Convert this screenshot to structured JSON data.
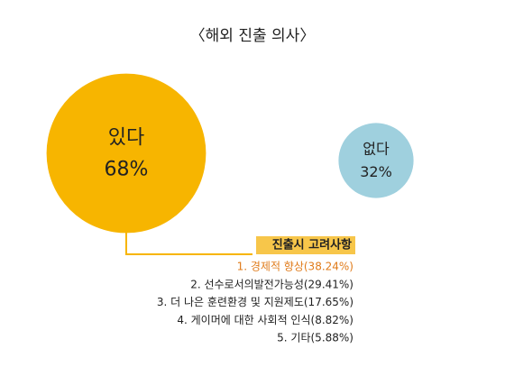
{
  "chart_data": {
    "type": "bubble",
    "title": "〈해외 진출 의사〉",
    "categories": [
      "있다",
      "없다"
    ],
    "values": [
      68,
      32
    ],
    "value_labels": [
      "68%",
      "32%"
    ],
    "colors": [
      "#f7b500",
      "#9fd0de"
    ],
    "annotation": {
      "title": "진출시 고려사항",
      "items": [
        "1. 경제적 향상(38.24%)",
        "2. 선수로서의발전가능성(29.41%)",
        "3. 더 나은 훈련환경 및 지원제도(17.65%)",
        "4. 게이머에 대한 사회적 인식(8.82%)",
        "5. 기타(5.88%)"
      ],
      "highlight_color": "#e07b1a"
    }
  }
}
